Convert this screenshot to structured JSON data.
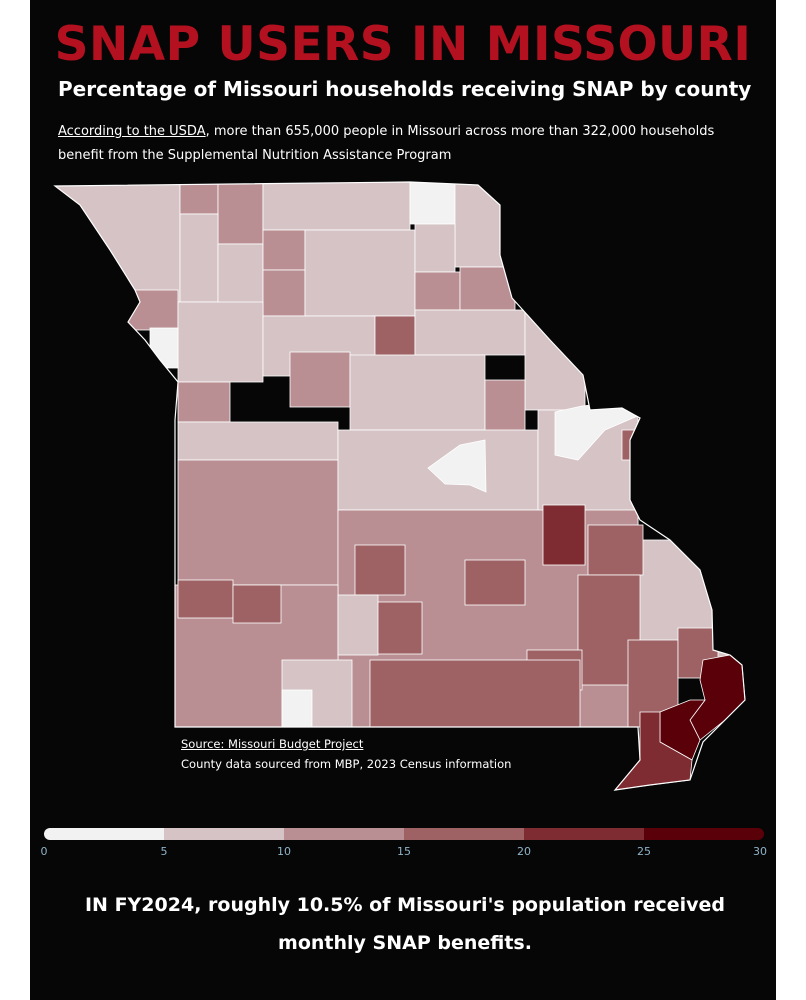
{
  "header": {
    "title": "SNAP USERS IN MISSOURI",
    "subtitle": "Percentage of Missouri households receiving SNAP by county",
    "intro_link": "According to the USDA",
    "intro_text": ", more than 655,000 people in Missouri across more than 322,000 households benefit from the Supplemental Nutrition Assistance Program"
  },
  "source": {
    "link": "Source: Missouri Budget Project",
    "note": "County data sourced from MBP, 2023 Census information"
  },
  "legend": {
    "colors": [
      "#f2f2f2",
      "#d6c3c5",
      "#b98f93",
      "#9e6265",
      "#7e2b31",
      "#5a0008"
    ],
    "ticks": [
      "0",
      "5",
      "10",
      "15",
      "20",
      "25",
      "30"
    ],
    "tick_color": "#8fb3c8"
  },
  "footer": {
    "line1": "IN FY2024, roughly 10.5% of Missouri's population received",
    "line2": "monthly SNAP benefits."
  },
  "colors": {
    "title": "#b31120",
    "background": "#060606",
    "county_border": "#ffffff"
  },
  "map_data": {
    "unit": "percent of households receiving SNAP",
    "scale_max": 30,
    "counties": [
      {
        "band": 1
      },
      {
        "band": 1
      },
      {
        "band": 2
      },
      {
        "band": 1
      },
      {
        "band": 0
      },
      {
        "band": 1
      },
      {
        "band": 1
      },
      {
        "band": 1
      },
      {
        "band": 1
      },
      {
        "band": 2
      },
      {
        "band": 1
      },
      {
        "band": 1
      },
      {
        "band": 1
      },
      {
        "band": 1
      },
      {
        "band": 1
      },
      {
        "band": 1
      },
      {
        "band": 1
      },
      {
        "band": 2
      },
      {
        "band": 1
      },
      {
        "band": 1
      },
      {
        "band": 2
      },
      {
        "band": 2
      },
      {
        "band": 1
      },
      {
        "band": 2
      },
      {
        "band": 1
      },
      {
        "band": 3
      },
      {
        "band": 1
      },
      {
        "band": 1
      },
      {
        "band": 0
      },
      {
        "band": 0
      },
      {
        "band": 4
      },
      {
        "band": 5
      },
      {
        "band": 3
      }
    ]
  }
}
